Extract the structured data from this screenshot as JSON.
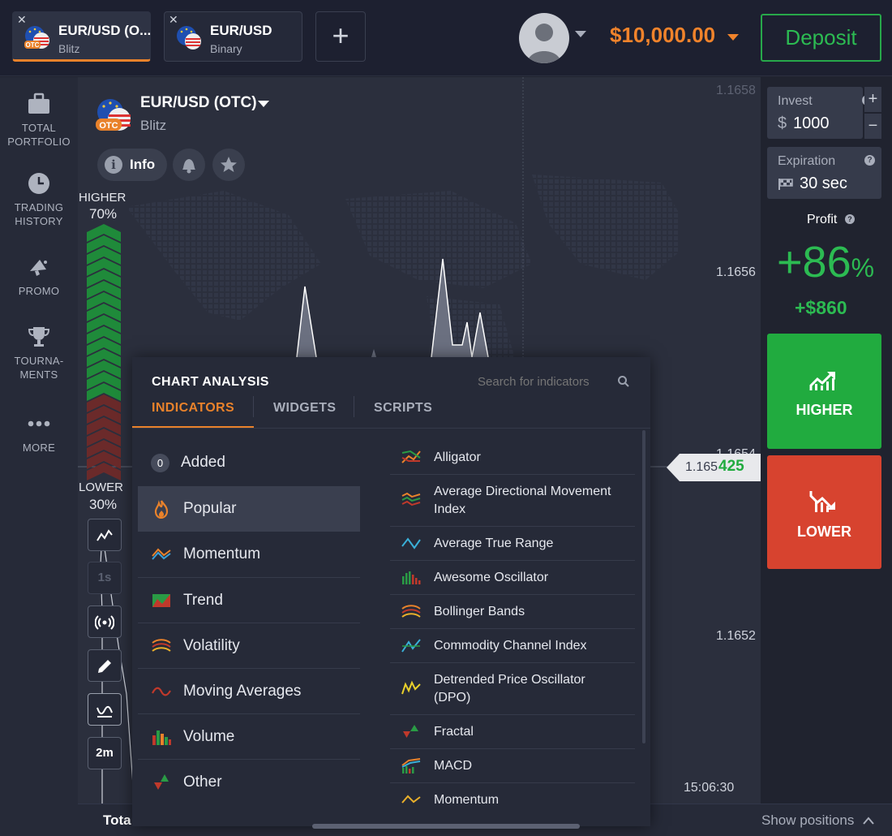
{
  "tabs": [
    {
      "title": "EUR/USD (O...",
      "subtitle": "Blitz",
      "flag_badge": "OTC"
    },
    {
      "title": "EUR/USD",
      "subtitle": "Binary"
    }
  ],
  "add_tab_label": "+",
  "balance": "$10,000.00",
  "deposit_label": "Deposit",
  "sidebar": {
    "items": [
      {
        "label_1": "TOTAL",
        "label_2": "PORTFOLIO"
      },
      {
        "label_1": "TRADING",
        "label_2": "HISTORY"
      },
      {
        "label_1": "PROMO",
        "label_2": ""
      },
      {
        "label_1": "TOURNA-",
        "label_2": "MENTS"
      },
      {
        "label_1": "MORE",
        "label_2": ""
      }
    ]
  },
  "asset": {
    "name": "EUR/USD (OTC)",
    "type": "Blitz",
    "info_label": "Info"
  },
  "sentiment": {
    "higher_label": "HIGHER",
    "higher_pct": "70%",
    "higher_fraction": 0.7,
    "lower_label": "LOWER",
    "lower_pct": "30%"
  },
  "chart_tools": {
    "time_1s": "1s",
    "timeframe": "2m"
  },
  "price_axis": [
    "1.1658",
    "1.1656",
    "1.1654",
    "1.1652"
  ],
  "current_price": {
    "base": "1.165",
    "highlight": "425"
  },
  "time_label": "15:06:30",
  "right_panel": {
    "invest_label": "Invest",
    "invest_currency": "$",
    "invest_value": "1000",
    "expiration_label": "Expiration",
    "expiration_value": "30 sec",
    "profit_label": "Profit",
    "profit_pct": "+86",
    "profit_pct_sign": "%",
    "profit_amount": "+$860",
    "higher_label": "HIGHER",
    "lower_label": "LOWER"
  },
  "bottom": {
    "total_label": "Tota",
    "show_positions": "Show positions"
  },
  "panel": {
    "title": "CHART ANALYSIS",
    "search_placeholder": "Search for indicators",
    "tabs": [
      "INDICATORS",
      "WIDGETS",
      "SCRIPTS"
    ],
    "added_count": "0",
    "categories": [
      "Added",
      "Popular",
      "Momentum",
      "Trend",
      "Volatility",
      "Moving Averages",
      "Volume",
      "Other"
    ],
    "indicators": [
      "Alligator",
      "Average Directional Movement Index",
      "Average True Range",
      "Awesome Oscillator",
      "Bollinger Bands",
      "Commodity Channel Index",
      "Detrended Price Oscillator (DPO)",
      "Fractal",
      "MACD",
      "Momentum"
    ]
  },
  "colors": {
    "accent_orange": "#e9822b",
    "green": "#21ab3f",
    "red": "#d7432f",
    "bg": "#20232f"
  }
}
